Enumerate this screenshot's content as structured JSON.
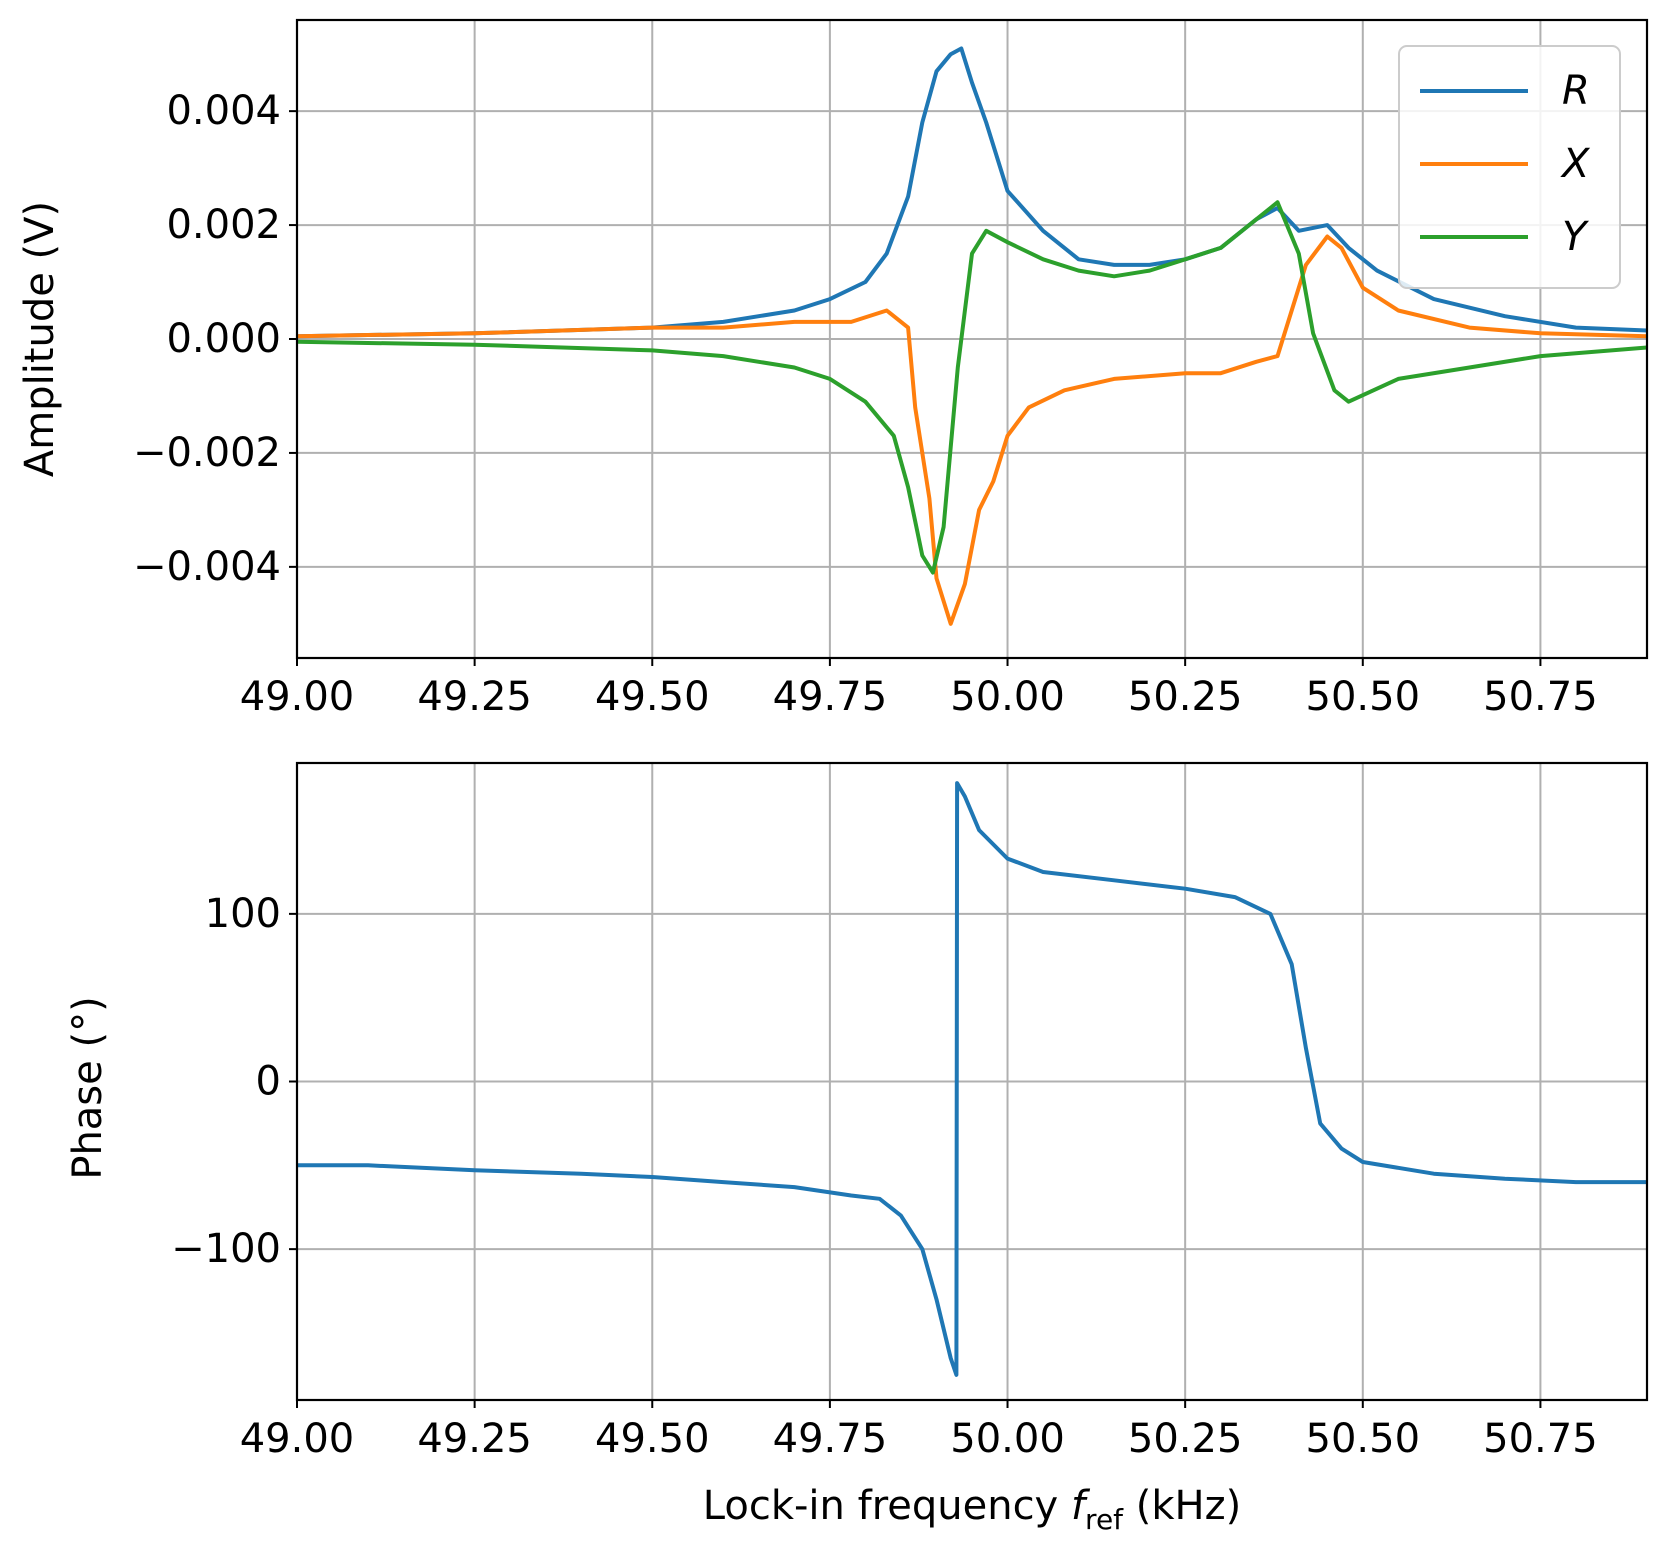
{
  "colors": {
    "R": "#1f77b4",
    "X": "#ff7f0e",
    "Y": "#2ca02c"
  },
  "chart_data": [
    {
      "type": "line",
      "ylabel": "Amplitude (V)",
      "xlim": [
        49.0,
        50.9
      ],
      "ylim": [
        -0.0056,
        0.0056
      ],
      "grid": true,
      "legend": "top-right",
      "x_ticks": [
        49.0,
        49.25,
        49.5,
        49.75,
        50.0,
        50.25,
        50.5,
        50.75
      ],
      "x_tick_labels": [
        "49.00",
        "49.25",
        "49.50",
        "49.75",
        "50.00",
        "50.25",
        "50.50",
        "50.75"
      ],
      "y_ticks": [
        0.004,
        0.002,
        0.0,
        -0.002,
        -0.004
      ],
      "y_tick_labels": [
        "0.004",
        "0.002",
        "0.000",
        "−0.002",
        "−0.004"
      ],
      "series": [
        {
          "name": "R",
          "color": "#1f77b4",
          "points": [
            [
              49.0,
              5e-05
            ],
            [
              49.25,
              0.0001
            ],
            [
              49.5,
              0.0002
            ],
            [
              49.6,
              0.0003
            ],
            [
              49.7,
              0.0005
            ],
            [
              49.75,
              0.0007
            ],
            [
              49.8,
              0.001
            ],
            [
              49.83,
              0.0015
            ],
            [
              49.86,
              0.0025
            ],
            [
              49.88,
              0.0038
            ],
            [
              49.9,
              0.0047
            ],
            [
              49.92,
              0.005
            ],
            [
              49.935,
              0.0051
            ],
            [
              49.95,
              0.0045
            ],
            [
              49.97,
              0.0038
            ],
            [
              50.0,
              0.0026
            ],
            [
              50.05,
              0.0019
            ],
            [
              50.1,
              0.0014
            ],
            [
              50.15,
              0.0013
            ],
            [
              50.2,
              0.0013
            ],
            [
              50.25,
              0.0014
            ],
            [
              50.3,
              0.0016
            ],
            [
              50.35,
              0.0021
            ],
            [
              50.38,
              0.0023
            ],
            [
              50.41,
              0.0019
            ],
            [
              50.45,
              0.002
            ],
            [
              50.48,
              0.0016
            ],
            [
              50.52,
              0.0012
            ],
            [
              50.6,
              0.0007
            ],
            [
              50.7,
              0.0004
            ],
            [
              50.8,
              0.0002
            ],
            [
              50.9,
              0.00015
            ]
          ]
        },
        {
          "name": "X",
          "color": "#ff7f0e",
          "points": [
            [
              49.0,
              5e-05
            ],
            [
              49.25,
              0.0001
            ],
            [
              49.5,
              0.0002
            ],
            [
              49.6,
              0.0002
            ],
            [
              49.7,
              0.0003
            ],
            [
              49.78,
              0.0003
            ],
            [
              49.83,
              0.0005
            ],
            [
              49.86,
              0.0002
            ],
            [
              49.87,
              -0.0012
            ],
            [
              49.89,
              -0.0028
            ],
            [
              49.9,
              -0.0042
            ],
            [
              49.92,
              -0.005
            ],
            [
              49.94,
              -0.0043
            ],
            [
              49.96,
              -0.003
            ],
            [
              49.98,
              -0.0025
            ],
            [
              50.0,
              -0.0017
            ],
            [
              50.03,
              -0.0012
            ],
            [
              50.08,
              -0.0009
            ],
            [
              50.15,
              -0.0007
            ],
            [
              50.25,
              -0.0006
            ],
            [
              50.3,
              -0.0006
            ],
            [
              50.35,
              -0.0004
            ],
            [
              50.38,
              -0.0003
            ],
            [
              50.4,
              0.0005
            ],
            [
              50.42,
              0.0013
            ],
            [
              50.45,
              0.0018
            ],
            [
              50.47,
              0.0016
            ],
            [
              50.5,
              0.0009
            ],
            [
              50.55,
              0.0005
            ],
            [
              50.65,
              0.0002
            ],
            [
              50.75,
              0.0001
            ],
            [
              50.9,
              5e-05
            ]
          ]
        },
        {
          "name": "Y",
          "color": "#2ca02c",
          "points": [
            [
              49.0,
              -5e-05
            ],
            [
              49.25,
              -0.0001
            ],
            [
              49.5,
              -0.0002
            ],
            [
              49.6,
              -0.0003
            ],
            [
              49.7,
              -0.0005
            ],
            [
              49.75,
              -0.0007
            ],
            [
              49.8,
              -0.0011
            ],
            [
              49.84,
              -0.0017
            ],
            [
              49.86,
              -0.0026
            ],
            [
              49.88,
              -0.0038
            ],
            [
              49.895,
              -0.0041
            ],
            [
              49.91,
              -0.0033
            ],
            [
              49.93,
              -0.0005
            ],
            [
              49.95,
              0.0015
            ],
            [
              49.97,
              0.0019
            ],
            [
              50.0,
              0.0017
            ],
            [
              50.05,
              0.0014
            ],
            [
              50.1,
              0.0012
            ],
            [
              50.15,
              0.0011
            ],
            [
              50.2,
              0.0012
            ],
            [
              50.25,
              0.0014
            ],
            [
              50.3,
              0.0016
            ],
            [
              50.35,
              0.0021
            ],
            [
              50.38,
              0.0024
            ],
            [
              50.41,
              0.0015
            ],
            [
              50.43,
              0.0001
            ],
            [
              50.46,
              -0.0009
            ],
            [
              50.48,
              -0.0011
            ],
            [
              50.55,
              -0.0007
            ],
            [
              50.65,
              -0.0005
            ],
            [
              50.75,
              -0.0003
            ],
            [
              50.9,
              -0.00015
            ]
          ]
        }
      ]
    },
    {
      "type": "line",
      "xlabel": "Lock-in frequency f_ref (kHz)",
      "ylabel": "Phase (°)",
      "xlim": [
        49.0,
        50.9
      ],
      "ylim": [
        -190,
        190
      ],
      "grid": true,
      "x_ticks": [
        49.0,
        49.25,
        49.5,
        49.75,
        50.0,
        50.25,
        50.5,
        50.75
      ],
      "x_tick_labels": [
        "49.00",
        "49.25",
        "49.50",
        "49.75",
        "50.00",
        "50.25",
        "50.50",
        "50.75"
      ],
      "y_ticks": [
        100,
        0,
        -100
      ],
      "y_tick_labels": [
        "100",
        "0",
        "−100"
      ],
      "series": [
        {
          "color": "#1f77b4",
          "points": [
            [
              49.0,
              -50
            ],
            [
              49.1,
              -50
            ],
            [
              49.25,
              -53
            ],
            [
              49.4,
              -55
            ],
            [
              49.5,
              -57
            ],
            [
              49.6,
              -60
            ],
            [
              49.7,
              -63
            ],
            [
              49.78,
              -68
            ],
            [
              49.82,
              -70
            ],
            [
              49.85,
              -80
            ],
            [
              49.88,
              -100
            ],
            [
              49.9,
              -130
            ],
            [
              49.92,
              -165
            ],
            [
              49.928,
              -175
            ],
            [
              49.929,
              178
            ],
            [
              49.94,
              170
            ],
            [
              49.96,
              150
            ],
            [
              50.0,
              133
            ],
            [
              50.05,
              125
            ],
            [
              50.15,
              120
            ],
            [
              50.25,
              115
            ],
            [
              50.32,
              110
            ],
            [
              50.37,
              100
            ],
            [
              50.4,
              70
            ],
            [
              50.42,
              20
            ],
            [
              50.44,
              -25
            ],
            [
              50.47,
              -40
            ],
            [
              50.5,
              -48
            ],
            [
              50.6,
              -55
            ],
            [
              50.7,
              -58
            ],
            [
              50.8,
              -60
            ],
            [
              50.9,
              -60
            ]
          ]
        }
      ]
    }
  ],
  "legend_labels": [
    "R",
    "X",
    "Y"
  ],
  "xlabel_parts": {
    "prefix": "Lock-in frequency ",
    "var": "f",
    "sub": "ref",
    "suffix": " (kHz)"
  }
}
